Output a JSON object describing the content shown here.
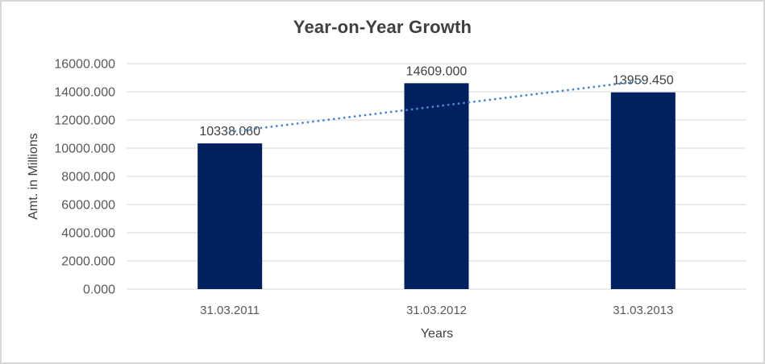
{
  "window": {
    "background": "#ffffff",
    "border_color": "#d7d7d7"
  },
  "chart_data": {
    "type": "bar",
    "title": "Year-on-Year Growth",
    "xlabel": "Years",
    "ylabel": "Amt. in Millions",
    "categories": [
      "31.03.2011",
      "31.03.2012",
      "31.03.2013"
    ],
    "series": [
      {
        "name": "Amt. in Millions",
        "values": [
          10338.06,
          14609.0,
          13959.45
        ]
      }
    ],
    "data_labels": [
      "10338.060",
      "14609.000",
      "13959.450"
    ],
    "ylim": [
      0,
      16000
    ],
    "ytick_step": 2000,
    "ytick_labels": [
      "0.000",
      "2000.000",
      "4000.000",
      "6000.000",
      "8000.000",
      "10000.000",
      "12000.000",
      "14000.000",
      "16000.000"
    ],
    "grid": true,
    "legend_position": "none",
    "trendline": {
      "type": "linear",
      "style": "dotted",
      "color": "#4e86c8"
    },
    "colors": {
      "bar": "#002060",
      "gridline": "#d9d9d9",
      "title_text": "#404040",
      "axis_text": "#595959",
      "label_text": "#404040"
    }
  }
}
